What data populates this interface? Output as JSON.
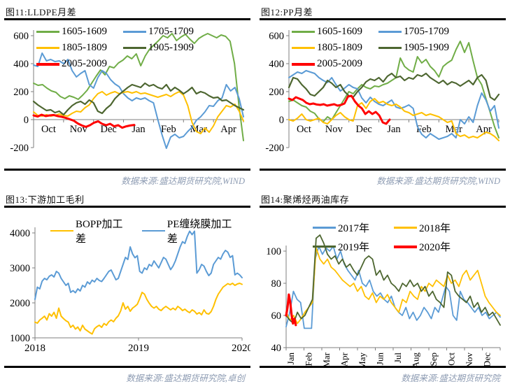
{
  "footer_color": "#8E9CB3",
  "axis_color": "#7f7f7f",
  "chart_data": [
    {
      "figure_label": "图11:LLDPE月差",
      "type": "line",
      "source": "数据来源:盛达期货研究院,WIND",
      "legend_rows": [
        [
          0,
          1
        ],
        [
          2,
          3
        ],
        [
          4
        ]
      ],
      "legend_position": "overlay-top",
      "y_axis": {
        "min": -200,
        "max": 600,
        "ticks": [
          600,
          400,
          200,
          0,
          -200
        ]
      },
      "x_axis": {
        "labels": [
          "Oct",
          "Nov",
          "Dec",
          "Jan",
          "Feb",
          "Mar",
          "Apr"
        ],
        "mode": "segments",
        "axis_at": 0
      },
      "series": [
        {
          "name": "1605-1609",
          "color": "#70AD47",
          "width": 2,
          "x_range": [
            0,
            1
          ],
          "values": [
            260,
            245,
            250,
            225,
            205,
            195,
            165,
            150,
            170,
            160,
            145,
            175,
            210,
            260,
            310,
            355,
            320,
            380,
            370,
            405,
            425,
            455,
            435,
            470,
            385,
            455,
            505,
            535,
            565,
            600,
            585,
            615,
            565,
            590,
            610,
            575,
            545,
            580,
            600,
            615,
            600,
            585,
            605,
            595,
            560,
            400,
            100,
            -150
          ]
        },
        {
          "name": "1705-1709",
          "color": "#5B9BD5",
          "width": 2,
          "x_range": [
            0,
            1
          ],
          "values": [
            390,
            380,
            475,
            420,
            430,
            415,
            420,
            400,
            430,
            350,
            305,
            330,
            350,
            250,
            225,
            300,
            350,
            330,
            285,
            255,
            235,
            185,
            155,
            135,
            155,
            145,
            155,
            135,
            120,
            0,
            -110,
            -205,
            -125,
            -105,
            -130,
            -120,
            -85,
            -55,
            -5,
            20,
            55,
            100,
            95,
            135,
            155,
            250,
            205,
            230,
            150,
            20
          ]
        },
        {
          "name": "1805-1809",
          "color": "#FFC000",
          "width": 2,
          "x_range": [
            0,
            1
          ],
          "values": [
            55,
            30,
            25,
            35,
            25,
            30,
            40,
            30,
            25,
            45,
            60,
            55,
            85,
            105,
            150,
            185,
            200,
            175,
            190,
            200,
            185,
            195,
            200,
            190,
            200,
            185,
            190,
            180,
            170,
            160,
            170,
            180,
            165,
            185,
            200,
            175,
            100,
            -20,
            -85,
            -100,
            -60,
            -90,
            -45,
            20,
            60,
            100,
            90,
            110,
            60,
            -10
          ]
        },
        {
          "name": "1905-1909",
          "color": "#4D6630",
          "width": 2.2,
          "x_range": [
            0,
            1
          ],
          "values": [
            130,
            105,
            85,
            65,
            70,
            50,
            60,
            35,
            70,
            100,
            120,
            130,
            110,
            140,
            120,
            60,
            45,
            80,
            105,
            150,
            180,
            205,
            230,
            250,
            240,
            230,
            260,
            240,
            250,
            230,
            220,
            250,
            205,
            230,
            210,
            185,
            205,
            230,
            185,
            200,
            190,
            170,
            155,
            160,
            135,
            140,
            120,
            100,
            85,
            70
          ]
        },
        {
          "name": "2005-2009",
          "color": "#FF0000",
          "width": 3,
          "x_range": [
            0,
            0.48
          ],
          "values": [
            30,
            22,
            35,
            25,
            30,
            33,
            25,
            20,
            12,
            2,
            -8,
            -28,
            -42,
            -52,
            -40,
            -22,
            -12,
            -30,
            -40,
            -30,
            -48,
            -40,
            -58,
            -48,
            -42,
            -38
          ]
        }
      ]
    },
    {
      "figure_label": "图12:PP月差",
      "type": "line",
      "source": "数据来源:盛达期货研究院,WIND",
      "legend_rows": [
        [
          0,
          1
        ],
        [
          2,
          3
        ],
        [
          4
        ]
      ],
      "legend_position": "overlay-top",
      "y_axis": {
        "min": -200,
        "max": 600,
        "ticks": [
          600,
          400,
          200,
          0,
          -200
        ]
      },
      "x_axis": {
        "labels": [
          "Oct",
          "Nov",
          "Dec",
          "Jan",
          "Feb",
          "Mar",
          "Apr"
        ],
        "mode": "segments",
        "axis_at": 0
      },
      "series": [
        {
          "name": "1605-1609",
          "color": "#70AD47",
          "width": 2,
          "x_range": [
            0,
            1
          ],
          "values": [
            130,
            140,
            120,
            100,
            90,
            60,
            45,
            5,
            -15,
            20,
            0,
            50,
            100,
            150,
            200,
            185,
            220,
            250,
            230,
            220,
            240,
            235,
            250,
            260,
            280,
            300,
            440,
            380,
            355,
            340,
            450,
            405,
            430,
            380,
            350,
            305,
            380,
            405,
            425,
            500,
            560,
            480,
            550,
            420,
            300,
            250,
            150,
            50,
            -50,
            -130
          ]
        },
        {
          "name": "1705-1709",
          "color": "#5B9BD5",
          "width": 2,
          "x_range": [
            0,
            1
          ],
          "values": [
            300,
            320,
            340,
            330,
            350,
            340,
            330,
            300,
            280,
            265,
            300,
            250,
            205,
            225,
            250,
            230,
            220,
            155,
            120,
            160,
            130,
            110,
            100,
            120,
            140,
            90,
            80,
            90,
            105,
            80,
            -50,
            -105,
            -130,
            -100,
            -120,
            -140,
            -130,
            -120,
            -100,
            -130,
            0,
            -30,
            20,
            -20,
            100,
            190,
            140,
            60,
            100,
            -60
          ]
        },
        {
          "name": "1805-1809",
          "color": "#FFC000",
          "width": 2,
          "x_range": [
            0,
            1
          ],
          "values": [
            0,
            -10,
            10,
            40,
            0,
            -10,
            0,
            10,
            -20,
            -30,
            0,
            30,
            50,
            20,
            0,
            -10,
            100,
            120,
            80,
            130,
            150,
            120,
            130,
            110,
            100,
            110,
            90,
            60,
            50,
            30,
            40,
            50,
            30,
            40,
            30,
            20,
            0,
            -20,
            -10,
            -100,
            -120,
            -110,
            -130,
            -120,
            -130,
            -110,
            -90,
            -100,
            -120,
            -150
          ]
        },
        {
          "name": "1905-1909",
          "color": "#4D6630",
          "width": 2.2,
          "x_range": [
            0,
            1
          ],
          "values": [
            230,
            300,
            290,
            250,
            220,
            180,
            170,
            200,
            230,
            280,
            260,
            230,
            250,
            200,
            170,
            160,
            200,
            230,
            270,
            290,
            280,
            300,
            270,
            310,
            330,
            300,
            310,
            280,
            300,
            290,
            320,
            310,
            330,
            300,
            280,
            260,
            280,
            250,
            270,
            260,
            240,
            260,
            280,
            250,
            300,
            320,
            280,
            160,
            140,
            180
          ]
        },
        {
          "name": "2005-2009",
          "color": "#FF0000",
          "width": 3,
          "x_range": [
            0,
            0.48
          ],
          "values": [
            150,
            140,
            160,
            150,
            140,
            120,
            110,
            115,
            108,
            105,
            110,
            100,
            105,
            110,
            100,
            105,
            115,
            165,
            170,
            130,
            100,
            80,
            40,
            60,
            40,
            55,
            30,
            -20,
            -30,
            0
          ]
        }
      ]
    },
    {
      "figure_label": "图13:下游加工毛利",
      "type": "line",
      "source": "数据来源:盛达期货研究院,卓创",
      "legend_rows": [
        [
          0,
          1
        ]
      ],
      "legend_position": "overlay-top",
      "y_axis": {
        "min": 1000,
        "max": 4000,
        "ticks": [
          4000,
          3000,
          2000,
          1000
        ]
      },
      "x_axis": {
        "labels": [
          "2018",
          "2019",
          "2020"
        ],
        "mode": "points",
        "axis_at": 1000
      },
      "series": [
        {
          "name": "BOPP加工差",
          "color": "#FFC000",
          "width": 2,
          "x_range": [
            0,
            1
          ],
          "values": [
            1450,
            1420,
            1510,
            1560,
            1620,
            1510,
            1690,
            1620,
            1730,
            1560,
            1850,
            1620,
            1550,
            1490,
            1450,
            1300,
            1360,
            1250,
            1310,
            1200,
            1360,
            1250,
            1200,
            1150,
            1110,
            1260,
            1320,
            1360,
            1300,
            1410,
            1360,
            1460,
            1510,
            1460,
            1560,
            1630,
            1770,
            2000,
            1820,
            1900,
            1760,
            1850,
            1900,
            1960,
            2120,
            2300,
            2250,
            2100,
            1990,
            1900,
            1850,
            1900,
            1820,
            1780,
            1850,
            1900,
            1850,
            1800,
            1850,
            1800,
            1900,
            1850,
            1780,
            1820,
            1760,
            1720,
            1800,
            1760,
            1680,
            1720,
            1660,
            1800,
            1700,
            1680,
            1750,
            1900,
            2100,
            2250,
            2350,
            2450,
            2500,
            2550,
            2520,
            2560,
            2500,
            2540,
            2560,
            2530
          ]
        },
        {
          "name": "PE缠绕膜加工差",
          "color": "#5B9BD5",
          "width": 2,
          "x_range": [
            0,
            1
          ],
          "values": [
            2100,
            2450,
            2400,
            2620,
            2700,
            2660,
            2760,
            2800,
            2740,
            2900,
            2850,
            2700,
            2600,
            2500,
            2560,
            2300,
            2350,
            2290,
            2400,
            2340,
            2500,
            2450,
            2600,
            2540,
            2650,
            2600,
            2700,
            2640,
            2610,
            2700,
            2800,
            2900,
            2940,
            2800,
            2660,
            2700,
            2900,
            3100,
            3300,
            3240,
            3600,
            3400,
            3290,
            3350,
            2900,
            2850,
            3000,
            2950,
            3100,
            3050,
            3200,
            3100,
            3000,
            3150,
            3300,
            3250,
            3100,
            2950,
            3050,
            3200,
            3400,
            3600,
            3750,
            3700,
            3900,
            4050,
            3950,
            4050,
            2850,
            2950,
            3100,
            3050,
            2900,
            2780,
            2850,
            3100,
            3200,
            3300,
            3250,
            3400,
            3500,
            3450,
            3300,
            3350,
            2800,
            2850,
            2800,
            2720
          ]
        }
      ]
    },
    {
      "figure_label": "图14:聚烯烃两油库存",
      "type": "line",
      "source": "数据来源:盛达期货研究院",
      "legend_rows": [
        [
          0,
          1
        ],
        [
          2,
          3
        ]
      ],
      "legend_position": "overlay-top",
      "y_axis": {
        "min": 40,
        "max": 100,
        "ticks": [
          100,
          80,
          60,
          40
        ]
      },
      "x_axis": {
        "labels": [
          "Jan",
          "Feb",
          "Mar",
          "Apr",
          "May",
          "Jun",
          "Jul",
          "Aug",
          "Sep",
          "Oct",
          "Nov",
          "Dec"
        ],
        "mode": "segments-rotated",
        "axis_at": 40
      },
      "series": [
        {
          "name": "2017年",
          "color": "#5B9BD5",
          "width": 1.8,
          "x_range": [
            0,
            1
          ],
          "values": [
            53,
            62,
            75,
            70,
            68,
            52,
            52,
            52,
            95,
            103,
            98,
            102,
            100,
            103,
            95,
            100,
            92,
            88,
            85,
            82,
            88,
            80,
            78,
            82,
            75,
            72,
            74,
            70,
            68,
            72,
            65,
            62,
            60,
            65,
            58,
            62,
            57,
            60,
            65,
            62,
            58,
            65,
            62,
            70,
            78,
            75,
            60,
            57,
            75,
            70,
            68,
            65,
            62,
            65,
            60,
            62,
            58,
            60,
            62,
            59
          ]
        },
        {
          "name": "2018年",
          "color": "#FFC000",
          "width": 1.8,
          "x_range": [
            0,
            1
          ],
          "values": [
            62,
            57,
            60,
            55,
            58,
            62,
            65,
            68,
            102,
            95,
            92,
            95,
            90,
            88,
            85,
            82,
            80,
            78,
            80,
            75,
            78,
            72,
            70,
            74,
            68,
            72,
            70,
            73,
            68,
            65,
            62,
            70,
            68,
            75,
            72,
            70,
            78,
            75,
            80,
            78,
            82,
            80,
            78,
            85,
            80,
            82,
            78,
            85,
            88,
            82,
            85,
            88,
            80,
            72,
            68,
            65,
            62,
            60
          ]
        },
        {
          "name": "2019年",
          "color": "#4D6630",
          "width": 1.8,
          "x_range": [
            0,
            1
          ],
          "values": [
            60,
            57,
            55,
            62,
            58,
            60,
            65,
            70,
            108,
            110,
            105,
            98,
            95,
            97,
            92,
            95,
            90,
            92,
            88,
            85,
            90,
            95,
            97,
            95,
            85,
            88,
            82,
            85,
            80,
            78,
            75,
            80,
            78,
            82,
            78,
            80,
            75,
            78,
            72,
            75,
            70,
            68,
            65,
            87,
            85,
            75,
            72,
            70,
            68,
            72,
            65,
            68,
            62,
            65,
            60,
            62,
            58,
            54
          ]
        },
        {
          "name": "2020年",
          "color": "#FF0000",
          "width": 3.2,
          "x_range": [
            0,
            0.045
          ],
          "values": [
            60,
            65,
            73,
            68,
            60,
            55,
            58,
            54
          ]
        }
      ]
    }
  ]
}
